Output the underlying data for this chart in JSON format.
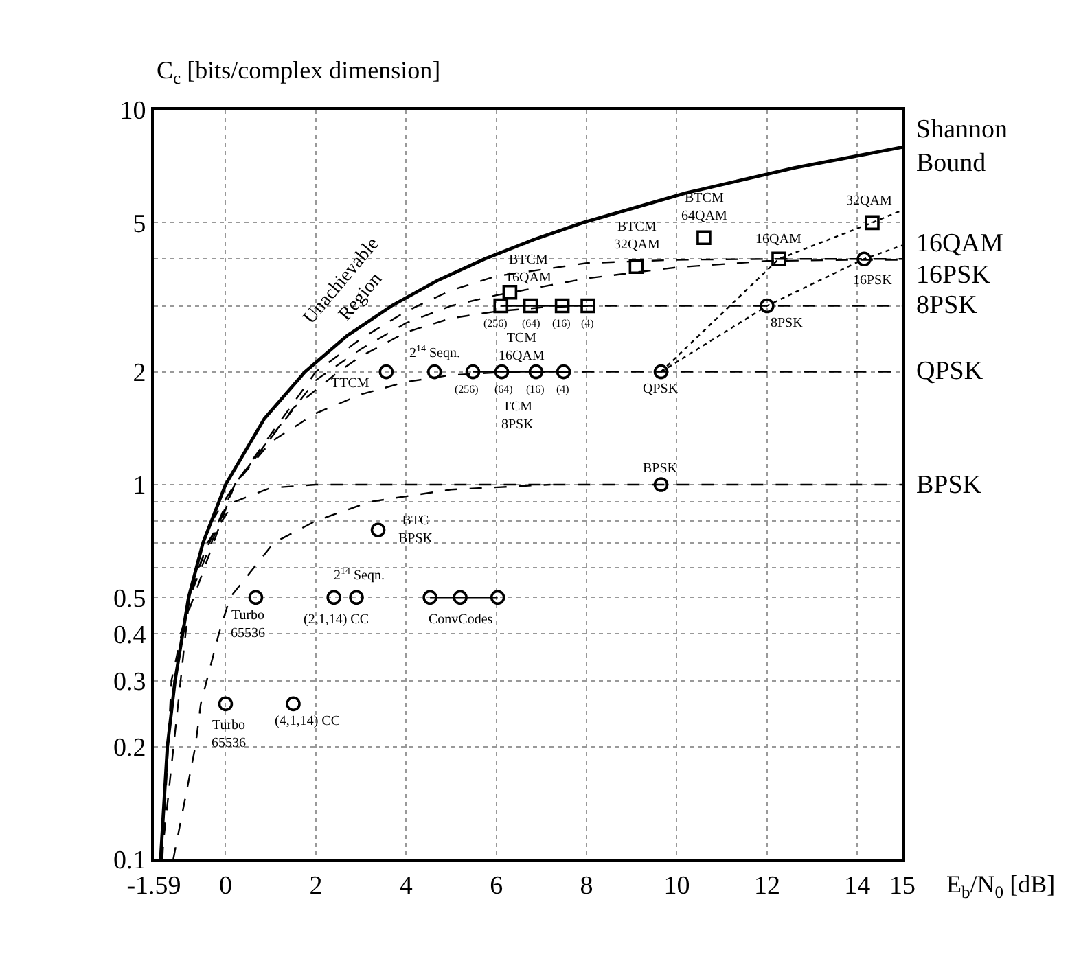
{
  "chart_data": {
    "type": "line",
    "xlabel": "E$_{b}$/N$_{0}$ [dB]",
    "ylabel": "C$_{c}$ [bits/complex dimension]",
    "log": "y",
    "grid": true,
    "legend": false,
    "xlim": [
      -1.59,
      15
    ],
    "xticks": [
      -1.59,
      0,
      2,
      4,
      6,
      8,
      10,
      12,
      14,
      15
    ],
    "ylim": [
      0.1,
      10
    ],
    "yticks": [
      0.1,
      0.2,
      0.3,
      0.4,
      0.5,
      {
        "value": 0.6,
        "label": null
      },
      {
        "value": 0.7,
        "label": null
      },
      {
        "value": 0.8,
        "label": null
      },
      {
        "value": 0.9,
        "label": null
      },
      1,
      2,
      {
        "value": 3,
        "label": null
      },
      {
        "value": 4,
        "label": null
      },
      5,
      10
    ],
    "series": [
      {
        "name": "Shannon Bound",
        "color": "#000000",
        "line_style": "solid",
        "marker": "none",
        "x": [
          -1.44,
          -1.29,
          -1.12,
          -0.82,
          -0.5,
          0,
          0.86,
          1.76,
          2.7,
          3.68,
          4.69,
          5.74,
          6.82,
          7.92,
          10.2,
          12.6,
          15
        ],
        "values": [
          0.1,
          0.2,
          0.3,
          0.5,
          0.7,
          1,
          1.5,
          2,
          2.5,
          3,
          3.5,
          4,
          4.5,
          5,
          6,
          7,
          7.95
        ]
      },
      {
        "name": "16QAM",
        "color": "#000000",
        "line_style": "dashed",
        "marker": "none",
        "x": [
          -0.3,
          0.2,
          2,
          3,
          4,
          5,
          6,
          8,
          10,
          12,
          15
        ],
        "values": [
          0.8,
          1.0,
          2.0,
          2.45,
          2.9,
          3.3,
          3.6,
          3.9,
          3.98,
          4,
          4
        ]
      },
      {
        "name": "16PSK",
        "color": "#000000",
        "line_style": "dashed",
        "marker": "none",
        "x": [
          -0.6,
          0.2,
          2,
          3,
          4,
          5,
          6,
          8,
          10,
          12,
          14,
          15
        ],
        "values": [
          0.6,
          1.0,
          1.9,
          2.3,
          2.7,
          3.0,
          3.2,
          3.55,
          3.8,
          3.95,
          3.98,
          3.98
        ]
      },
      {
        "name": "8PSK",
        "color": "#000000",
        "line_style": "dashed",
        "marker": "none",
        "x": [
          -1.0,
          0.2,
          1.5,
          2.5,
          3,
          4,
          5,
          6,
          7,
          8,
          15
        ],
        "values": [
          0.4,
          1.0,
          1.6,
          2.0,
          2.2,
          2.55,
          2.78,
          2.9,
          2.97,
          3,
          3
        ]
      },
      {
        "name": "QPSK",
        "color": "#000000",
        "line_style": "dashed",
        "marker": "none",
        "x": [
          -1.42,
          -0.8,
          0.2,
          1,
          2,
          3,
          4,
          5,
          6,
          8,
          15
        ],
        "values": [
          0.1,
          0.5,
          1.0,
          1.3,
          1.55,
          1.74,
          1.88,
          1.96,
          1.99,
          2,
          2
        ]
      },
      {
        "name": "BPSK",
        "color": "#000000",
        "line_style": "dashed",
        "marker": "none",
        "x": [
          -1.4,
          -1.2,
          -0.8,
          -0.4,
          0.2,
          1,
          2,
          15
        ],
        "values": [
          0.1,
          0.3,
          0.5,
          0.7,
          0.9,
          0.98,
          1,
          1
        ]
      },
      {
        "color": "#000000",
        "line_style": "dashed",
        "marker": "none",
        "x": [
          -1.16,
          -0.67,
          -0.55,
          -0.15,
          0.1,
          1.07,
          2.0,
          3.2,
          5,
          7.2
        ],
        "values": [
          0.1,
          0.2,
          0.26,
          0.4,
          0.5,
          0.7,
          0.8,
          0.9,
          0.97,
          1.0
        ]
      },
      {
        "color": "#000000",
        "line_style": "dotted",
        "marker": "none",
        "x": [
          9.65,
          12.0,
          14.15,
          15
        ],
        "values": [
          2,
          3,
          4,
          4.35
        ]
      },
      {
        "color": "#000000",
        "line_style": "dotted",
        "marker": "none",
        "x": [
          9.65,
          12.26,
          14.33,
          15
        ],
        "values": [
          2,
          4,
          5,
          5.4
        ]
      },
      {
        "color": "#000000",
        "line_style": "solid",
        "marker": "circle",
        "x": [
          5.48,
          6.12,
          6.88,
          7.49
        ],
        "values": [
          2,
          2,
          2,
          2
        ]
      },
      {
        "color": "#000000",
        "line_style": "solid",
        "marker": "square",
        "x": [
          6.1,
          6.76,
          7.46,
          8.03
        ],
        "values": [
          3,
          3,
          3,
          3
        ]
      },
      {
        "color": "#000000",
        "line_style": "solid",
        "marker": "circle",
        "x": [
          4.53,
          5.2,
          6.03
        ],
        "values": [
          0.5,
          0.5,
          0.5
        ]
      },
      {
        "type": "scatter",
        "color": "#000000",
        "marker": "circle",
        "x": [
          3.56,
          4.63,
          9.65,
          9.65,
          12.0,
          14.15,
          3.38,
          0.67,
          2.4,
          2.9,
          0,
          1.5
        ],
        "values": [
          2,
          2,
          2,
          1,
          3,
          4,
          0.757,
          0.5,
          0.5,
          0.5,
          0.26,
          0.26
        ]
      },
      {
        "type": "scatter",
        "color": "#000000",
        "marker": "square",
        "x": [
          6.3,
          9.1,
          10.6,
          12.26,
          14.33
        ],
        "values": [
          3.26,
          3.82,
          4.56,
          4,
          5
        ]
      }
    ],
    "annotations": [
      "Unachievable\nRegion",
      {
        "text": "TTCM",
        "x": 3.56,
        "y": 2
      },
      {
        "text": "2$^{14}$ Seqn.",
        "x": 4.63,
        "y": 2
      },
      {
        "text": "(256)",
        "x": 5.48,
        "y": 2
      },
      {
        "text": "(64)",
        "x": 6.12,
        "y": 2
      },
      {
        "text": "(16)",
        "x": 6.88,
        "y": 2
      },
      {
        "text": "(4)",
        "x": 7.49,
        "y": 2
      },
      {
        "text": "TCM\n8PSK",
        "x": 6.12,
        "y": 2
      },
      {
        "text": "TCM\n16QAM",
        "x": 6.76,
        "y": 3
      },
      {
        "text": "(256)",
        "x": 6.1,
        "y": 3
      },
      {
        "text": "(64)",
        "x": 6.76,
        "y": 3
      },
      {
        "text": "(16)",
        "x": 7.46,
        "y": 3
      },
      {
        "text": "(4)",
        "x": 8.03,
        "y": 3
      },
      {
        "text": "BTCM\n16QAM",
        "x": 6.3,
        "y": 3.26
      },
      {
        "text": "BTCM\n32QAM",
        "x": 9.1,
        "y": 3.82
      },
      {
        "text": "BTCM\n64QAM",
        "x": 10.6,
        "y": 4.56
      },
      {
        "text": "32QAM",
        "x": 14.33,
        "y": 5
      },
      {
        "text": "16QAM",
        "x": 12.26,
        "y": 4
      },
      {
        "text": "16PSK",
        "x": 14.15,
        "y": 4
      },
      {
        "text": "8PSK",
        "x": 12.0,
        "y": 3
      },
      {
        "text": "QPSK",
        "x": 9.65,
        "y": 2
      },
      {
        "text": "BPSK",
        "x": 9.65,
        "y": 1
      },
      {
        "text": "BTC\nBPSK",
        "x": 3.38,
        "y": 0.757
      },
      {
        "text": "2$^{14}$ Seqn.",
        "x": 2.9,
        "y": 0.5
      },
      {
        "text": "Turbo\n65536",
        "x": 0.67,
        "y": 0.5
      },
      {
        "text": "(2,1,14) CC",
        "x": 2.4,
        "y": 0.5
      },
      {
        "text": "ConvCodes",
        "x": 5.2,
        "y": 0.5
      },
      {
        "text": "Turbo\n65536",
        "x": 0,
        "y": 0.26
      },
      {
        "text": "(4,1,14) CC",
        "x": 1.5,
        "y": 0.26
      }
    ]
  }
}
